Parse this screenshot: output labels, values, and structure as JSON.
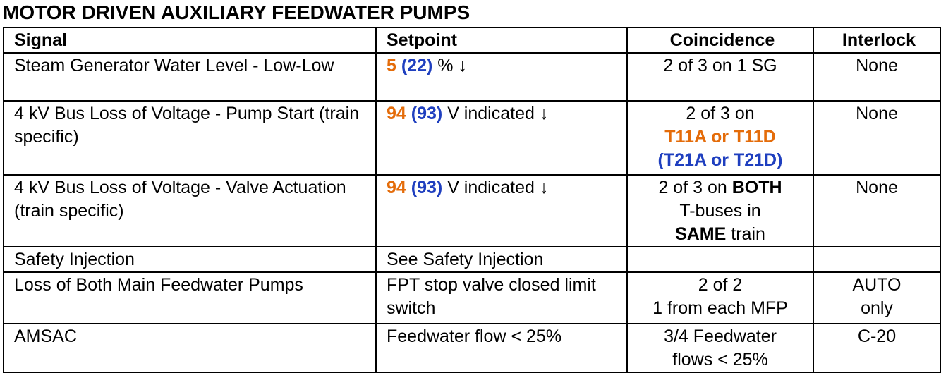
{
  "title": "MOTOR DRIVEN AUXILIARY FEEDWATER PUMPS",
  "table": {
    "headers": [
      "Signal",
      "Setpoint",
      "Coincidence",
      "Interlock"
    ],
    "rows": [
      {
        "signal": "Steam Generator Water Level - Low-Low",
        "setpoint": [
          "5",
          "(22)",
          "% ↓"
        ],
        "coincidence": [
          "2 of 3 on 1 SG"
        ],
        "interlock": "None"
      },
      {
        "signal": "4 kV Bus Loss of Voltage - Pump Start (train specific)",
        "setpoint": [
          "94",
          "(93)",
          "V indicated ↓"
        ],
        "coincidence": [
          "2 of 3 on",
          "T11A or T11D",
          "(T21A or T21D)"
        ],
        "interlock": "None"
      },
      {
        "signal": "4 kV Bus Loss of Voltage - Valve Actuation (train specific)",
        "setpoint": [
          "94",
          "(93)",
          "V indicated ↓"
        ],
        "coincidence": [
          "2 of 3 on",
          "BOTH",
          "T-buses in",
          "SAME",
          "train"
        ],
        "interlock": "None"
      },
      {
        "signal": "Safety Injection",
        "setpoint": [
          "See Safety Injection"
        ]
      },
      {
        "signal": "Loss of Both Main Feedwater Pumps",
        "setpoint": [
          "FPT stop valve closed limit switch"
        ],
        "coincidence": [
          "2 of 2",
          "1 from each MFP"
        ],
        "interlock": "AUTO only"
      },
      {
        "signal": "AMSAC",
        "setpoint": [
          "Feedwater flow < 25%"
        ],
        "coincidence": [
          "3/4 Feedwater flows < 25%"
        ],
        "interlock": "C-20"
      }
    ]
  }
}
